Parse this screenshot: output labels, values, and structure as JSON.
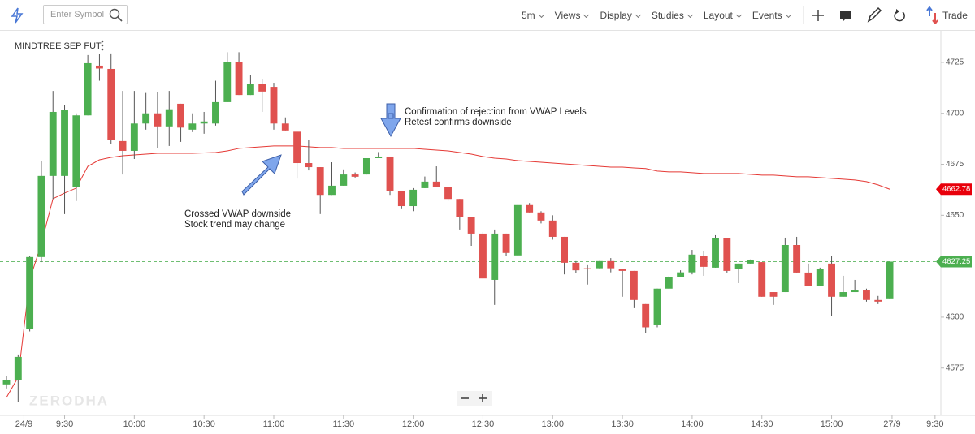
{
  "toolbar": {
    "search_placeholder": "Enter Symbol",
    "menus": [
      "5m",
      "Views",
      "Display",
      "Studies",
      "Layout",
      "Events"
    ],
    "trade": "Trade"
  },
  "chart_data": {
    "type": "candlestick",
    "title": "MINDTREE SEP FUT",
    "watermark": "ZERODHA",
    "up_color": "#4caf50",
    "down_color": "#e0514f",
    "open": [
      4567,
      4569.3,
      4594,
      4629.5,
      4669.3,
      4669.3,
      4664,
      4699,
      4723.4,
      4721.8,
      4686.4,
      4681.6,
      4695,
      4700,
      4693.6,
      4704.7,
      4692,
      4695,
      4695,
      4705.5,
      4725,
      4709,
      4714.6,
      4713,
      4695,
      4691,
      4675.6,
      4673.6,
      4660,
      4664.5,
      4670,
      4670,
      4678,
      4678.8,
      4661.7,
      4654.5,
      4663.3,
      4666.5,
      4664,
      4658,
      4649,
      4641,
      4618.3,
      4641,
      4630.3,
      4655,
      4651.4,
      4647.4,
      4639.4,
      4626.7,
      4624,
      4624,
      4627.5,
      4623.5,
      4622.7,
      4606.4,
      4596,
      4614,
      4619.5,
      4622,
      4630,
      4624.3,
      4638.6,
      4623.5,
      4626.3,
      4627,
      4612.3,
      4612.3,
      4635.4,
      4621.9,
      4615.5,
      4626.3,
      4610,
      4612.3,
      4613.1,
      4608.4,
      4609.2
    ],
    "high": [
      4571,
      4581.7,
      4630,
      4676.8,
      4711,
      4704,
      4700,
      4728.6,
      4729,
      4729.4,
      4711,
      4711,
      4710,
      4710.6,
      4711,
      4704.7,
      4700,
      4700.7,
      4716,
      4730,
      4730,
      4719,
      4717,
      4715,
      4698,
      4691,
      4687,
      4673.6,
      4676,
      4672.5,
      4671,
      4678,
      4681,
      4678.8,
      4661.7,
      4663.3,
      4669,
      4674,
      4664,
      4658,
      4649,
      4641.8,
      4643,
      4641,
      4655,
      4656,
      4652,
      4650,
      4639.4,
      4627.5,
      4625.5,
      4627.5,
      4629,
      4623.5,
      4622.7,
      4606.4,
      4614,
      4620,
      4623,
      4633,
      4632.4,
      4640.2,
      4638.6,
      4626.3,
      4628.3,
      4627,
      4612.3,
      4639,
      4639.4,
      4626.3,
      4624.3,
      4630,
      4620.3,
      4618.3,
      4614,
      4610.4,
      4627.25
    ],
    "low": [
      4565,
      4558.2,
      4593,
      4627,
      4658,
      4650.6,
      4657,
      4699,
      4716,
      4684.8,
      4670,
      4677.6,
      4692,
      4683,
      4684,
      4686,
      4690.8,
      4690,
      4694,
      4705.5,
      4709,
      4709,
      4700.7,
      4692,
      4691.6,
      4668,
      4672,
      4650.6,
      4660,
      4664.5,
      4668.5,
      4670,
      4678,
      4660,
      4653,
      4652,
      4663.3,
      4664,
      4657,
      4643,
      4635,
      4619,
      4606,
      4630,
      4630.3,
      4651.4,
      4646,
      4638,
      4621,
      4621.5,
      4616,
      4624,
      4622,
      4610,
      4604.4,
      4592.4,
      4595,
      4614,
      4619.5,
      4621,
      4620.3,
      4624.3,
      4621.9,
      4616.7,
      4626.3,
      4610,
      4606,
      4612.3,
      4621.9,
      4615.5,
      4615.5,
      4600.4,
      4610,
      4612.3,
      4607.6,
      4606.4,
      4609.2
    ],
    "close": [
      4569,
      4580.5,
      4629.5,
      4669.3,
      4700.7,
      4701.5,
      4699,
      4724.6,
      4722,
      4686.8,
      4681.6,
      4695,
      4700,
      4693.6,
      4702,
      4693,
      4695,
      4696,
      4705.5,
      4725,
      4709,
      4714.6,
      4710.7,
      4695,
      4691.6,
      4675.6,
      4673.6,
      4660,
      4664.5,
      4670,
      4668.9,
      4678,
      4678.8,
      4661.7,
      4654.5,
      4662.5,
      4666.5,
      4664,
      4658,
      4649,
      4641,
      4619,
      4641,
      4631.5,
      4655,
      4651.4,
      4647.4,
      4639.4,
      4626.7,
      4623,
      4623.5,
      4627.5,
      4624,
      4622.7,
      4608.4,
      4595,
      4614,
      4619.5,
      4622,
      4630.7,
      4624.7,
      4638.6,
      4622.7,
      4626.3,
      4627.9,
      4610,
      4610,
      4635.4,
      4621.9,
      4615.5,
      4623.5,
      4610,
      4612.3,
      4613.1,
      4608.4,
      4607.6,
      4627.25
    ],
    "overlays": [
      {
        "type": "line",
        "color": "#e53935",
        "values": [
          4560.6,
          4570.5,
          4618.3,
          4636.2,
          4658.1,
          4660.9,
          4663.3,
          4674,
          4677.2,
          4678.4,
          4679.2,
          4679.6,
          4680,
          4680.4,
          4680.4,
          4680.4,
          4680.4,
          4680.6,
          4680.8,
          4681.6,
          4682.8,
          4683.2,
          4683.6,
          4684,
          4684,
          4684,
          4683.6,
          4683.2,
          4683.2,
          4682.8,
          4682.8,
          4682.8,
          4682.8,
          4682.8,
          4682.8,
          4682.8,
          4682.4,
          4682,
          4681.6,
          4680.8,
          4680,
          4678.8,
          4678,
          4677.6,
          4676.8,
          4676.4,
          4676,
          4675.6,
          4675.2,
          4674.8,
          4674.4,
          4674,
          4673.6,
          4673.6,
          4673.2,
          4672.9,
          4671.7,
          4671.3,
          4671.3,
          4670.9,
          4670.5,
          4670.5,
          4670.5,
          4670.5,
          4670.1,
          4669.7,
          4669.7,
          4669.3,
          4668.9,
          4668.9,
          4668.5,
          4668.1,
          4667.7,
          4667.3,
          4666.5,
          4664.9,
          4662.78
        ]
      }
    ],
    "price_lines": [
      {
        "value": 4662.78,
        "color": "#e8000b",
        "dashed": false
      },
      {
        "value": 4627.25,
        "color": "#4caf50",
        "dashed": true
      }
    ],
    "ylim": [
      4551.8,
      4740.5
    ],
    "yticks": [
      4575,
      4600,
      4650,
      4675,
      4700,
      4725
    ],
    "xlim": [
      -0.56,
      80.4
    ],
    "xticks": [
      {
        "value": 1.5,
        "label": "24/9"
      },
      {
        "value": 5,
        "label": "9:30"
      },
      {
        "value": 11,
        "label": "10:00"
      },
      {
        "value": 17,
        "label": "10:30"
      },
      {
        "value": 23,
        "label": "11:00"
      },
      {
        "value": 29,
        "label": "11:30"
      },
      {
        "value": 35,
        "label": "12:00"
      },
      {
        "value": 41,
        "label": "12:30"
      },
      {
        "value": 47,
        "label": "13:00"
      },
      {
        "value": 53,
        "label": "13:30"
      },
      {
        "value": 59,
        "label": "14:00"
      },
      {
        "value": 65,
        "label": "14:30"
      },
      {
        "value": 71,
        "label": "15:00"
      },
      {
        "value": 76.2,
        "label": "27/9"
      },
      {
        "value": 79.9,
        "label": "9:30"
      }
    ],
    "annotations": [
      {
        "lines": [
          "Crossed VWAP downside",
          "Stock trend may change"
        ]
      },
      {
        "lines": [
          "Confirmation of rejection from VWAP Levels",
          "Retest confirms downside"
        ]
      }
    ]
  }
}
